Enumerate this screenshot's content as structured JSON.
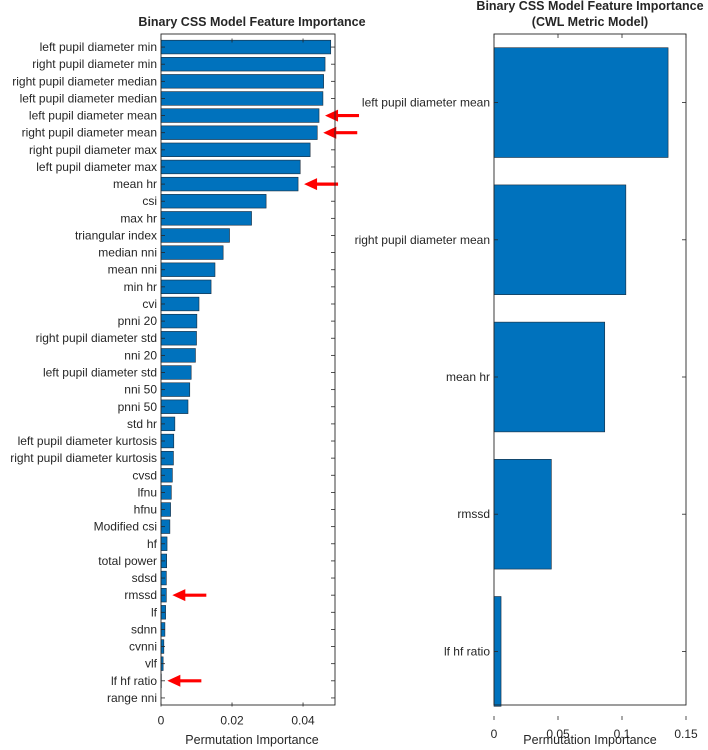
{
  "chart_data": [
    {
      "type": "bar",
      "orientation": "horizontal",
      "title": "Binary CSS Model Feature Importance",
      "xlabel": "Permutation Importance",
      "xlim": [
        0,
        0.049
      ],
      "xticks": [
        "0",
        "0.02",
        "0.04"
      ],
      "xtick_values": [
        0,
        0.02,
        0.04
      ],
      "grid": false,
      "bar_color": "#0072BD",
      "arrow_color": "#ff0000",
      "categories": [
        "left pupil diameter min",
        "right pupil diameter min",
        "right pupil diameter median",
        "left pupil diameter median",
        "left pupil diameter mean",
        "right pupil diameter mean",
        "right pupil diameter max",
        "left pupil diameter max",
        "mean hr",
        "csi",
        "max hr",
        "triangular index",
        "median nni",
        "mean nni",
        "min hr",
        "cvi",
        "pnni 20",
        "right pupil diameter std",
        "nni 20",
        "left pupil diameter std",
        "nni 50",
        "pnni 50",
        "std hr",
        "left pupil diameter kurtosis",
        "right pupil diameter kurtosis",
        "cvsd",
        "lfnu",
        "hfnu",
        "Modified csi",
        "hf",
        "total power",
        "sdsd",
        "rmssd",
        "lf",
        "sdnn",
        "cvnni",
        "vlf",
        "lf hf ratio",
        "range nni"
      ],
      "values": [
        0.0478,
        0.0462,
        0.0458,
        0.0456,
        0.0445,
        0.044,
        0.042,
        0.0392,
        0.0386,
        0.0296,
        0.0255,
        0.0193,
        0.0175,
        0.0152,
        0.0141,
        0.0107,
        0.0101,
        0.01,
        0.0097,
        0.0085,
        0.0081,
        0.0076,
        0.0039,
        0.0036,
        0.0035,
        0.0032,
        0.0029,
        0.0027,
        0.0025,
        0.0017,
        0.0016,
        0.0015,
        0.0015,
        0.0013,
        0.0011,
        0.0008,
        0.0006,
        0.0001,
        0.0
      ],
      "highlighted": [
        "left pupil diameter mean",
        "right pupil diameter mean",
        "mean hr",
        "rmssd",
        "lf hf ratio"
      ]
    },
    {
      "type": "bar",
      "orientation": "horizontal",
      "title": "Binary CSS Model Feature Importance",
      "subtitle": "(CWL Metric Model)",
      "xlabel": "Permutation Importance",
      "xlim": [
        0,
        0.15
      ],
      "xticks": [
        "0",
        "0.05",
        "0.1",
        "0.15"
      ],
      "xtick_values": [
        0,
        0.05,
        0.1,
        0.15
      ],
      "grid": false,
      "bar_color": "#0072BD",
      "categories": [
        "left pupil diameter mean",
        "right pupil diameter mean",
        "mean hr",
        "rmssd",
        "lf hf ratio"
      ],
      "values": [
        0.136,
        0.103,
        0.0865,
        0.0448,
        0.0055
      ]
    }
  ]
}
